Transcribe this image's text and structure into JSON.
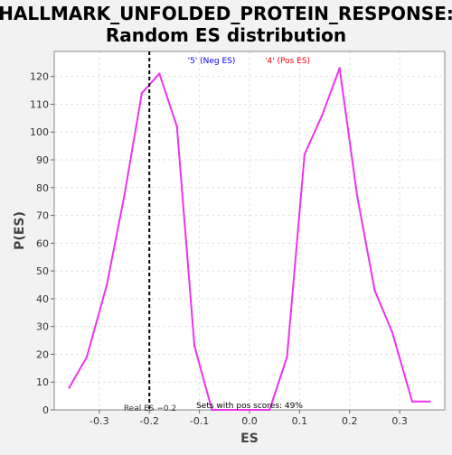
{
  "chart_data": {
    "type": "line",
    "title": [
      "HALLMARK_UNFOLDED_PROTEIN_RESPONSE:",
      "Random ES distribution"
    ],
    "xlabel": "ES",
    "ylabel": "P(ES)",
    "xlim": [
      -0.39,
      0.39
    ],
    "ylim": [
      0,
      129
    ],
    "xticks": [
      -0.3,
      -0.2,
      -0.1,
      0.0,
      0.1,
      0.2,
      0.3
    ],
    "xtick_labels": [
      "-0.3",
      "-0.2",
      "-0.1",
      "0.0",
      "0.1",
      "0.2",
      "0.3"
    ],
    "yticks": [
      0,
      10,
      20,
      30,
      40,
      50,
      60,
      70,
      80,
      90,
      100,
      110,
      120
    ],
    "grid": true,
    "series": [
      {
        "color": "#ee33ee",
        "x": [
          -0.36,
          -0.325,
          -0.285,
          -0.25,
          -0.215,
          -0.18,
          -0.145,
          -0.11,
          -0.075,
          -0.04,
          0.0,
          0.04,
          0.075,
          0.11,
          0.145,
          0.18,
          0.215,
          0.25,
          0.285,
          0.325,
          0.36
        ],
        "y": [
          8,
          19,
          45,
          77,
          114,
          121,
          102,
          23,
          0,
          0,
          0,
          0,
          19,
          92,
          106,
          123,
          77,
          43,
          28,
          3,
          3
        ]
      }
    ],
    "real_es": {
      "value": -0.2,
      "label": "Real ES −0.2"
    },
    "annotations": [
      {
        "text": "'5' (Neg ES)",
        "color": "#0000ee"
      },
      {
        "text": "'4' (Pos ES)",
        "color": "#ee0000"
      },
      {
        "text": "Sets with pos scores: 49%",
        "color": "#000000"
      }
    ]
  }
}
